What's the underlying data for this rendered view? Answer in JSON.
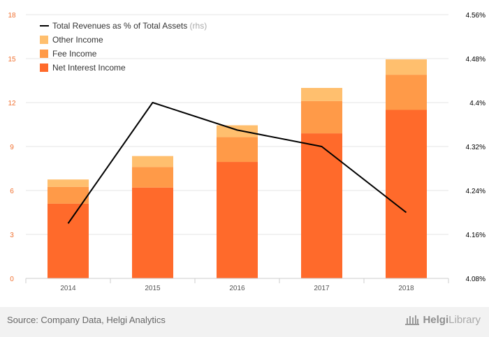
{
  "chart_data": {
    "type": "bar",
    "stacked": true,
    "categories": [
      "2014",
      "2015",
      "2016",
      "2017",
      "2018"
    ],
    "series": [
      {
        "name": "Net Interest Income",
        "type": "bar",
        "axis": "left",
        "color": "#ff6a2b",
        "values": [
          5.1,
          6.2,
          7.95,
          9.9,
          11.5
        ]
      },
      {
        "name": "Fee Income",
        "type": "bar",
        "axis": "left",
        "color": "#ff9a48",
        "values": [
          1.15,
          1.4,
          1.7,
          2.2,
          2.4
        ]
      },
      {
        "name": "Other Income",
        "type": "bar",
        "axis": "left",
        "color": "#ffbf6e",
        "values": [
          0.5,
          0.75,
          0.8,
          0.9,
          1.05
        ]
      },
      {
        "name": "Total Revenues as % of Total Assets",
        "suffix": "(rhs)",
        "type": "line",
        "axis": "right",
        "color": "#000000",
        "values": [
          4.18,
          4.4,
          4.35,
          4.32,
          4.2
        ]
      }
    ],
    "left_axis": {
      "ylim": [
        0,
        18
      ],
      "ticks": [
        "0",
        "3",
        "6",
        "9",
        "12",
        "15",
        "18"
      ],
      "color": "#f07030"
    },
    "right_axis": {
      "ylim": [
        4.08,
        4.56
      ],
      "ticks": [
        "4.08%",
        "4.16%",
        "4.24%",
        "4.32%",
        "4.4%",
        "4.48%",
        "4.56%"
      ],
      "color": "#000000"
    },
    "grid": "horizontal",
    "legend_position": "top-left"
  },
  "footer": {
    "source": "Source: Company Data, Helgi Analytics",
    "logo_bold": "Helgi",
    "logo_light": "Library"
  }
}
